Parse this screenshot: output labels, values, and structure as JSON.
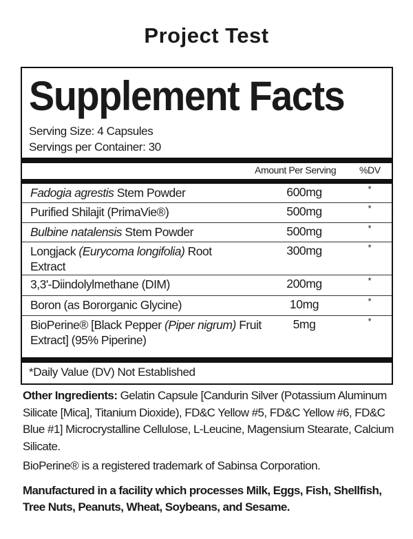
{
  "title": "Project Test",
  "panel": {
    "heading": "Supplement Facts",
    "serving_size": "Serving Size: 4 Capsules",
    "servings_per_container": "Servings per Container: 30",
    "col_amount": "Amount Per Serving",
    "col_dv": "%DV",
    "rows": [
      {
        "italic": "Fadogia agrestis",
        "rest": " Stem Powder",
        "amount": "600mg",
        "dv": "*"
      },
      {
        "pre": "Purified Shilajit (PrimaVie®)",
        "amount": "500mg",
        "dv": "*"
      },
      {
        "italic": "Bulbine natalensis",
        "rest": " Stem Powder",
        "amount": "500mg",
        "dv": "*"
      },
      {
        "pre": "Longjack ",
        "italic": "(Eurycoma longifolia)",
        "rest": " Root Extract",
        "amount": "300mg",
        "dv": "*"
      },
      {
        "pre": "3,3'-Diindolylmethane (DIM)",
        "amount": "200mg",
        "dv": "*"
      },
      {
        "pre": "Boron (as Bororganic Glycine)",
        "amount": "10mg",
        "dv": "*"
      },
      {
        "pre": "BioPerine® [Black Pepper ",
        "italic": "(Piper nigrum)",
        "rest": " Fruit Extract] (95% Piperine)",
        "amount": "5mg",
        "dv": "*"
      }
    ],
    "footnote": "*Daily Value (DV) Not Established"
  },
  "other_ingredients": {
    "label": "Other Ingredients:",
    "text": " Gelatin Capsule [Candurin Silver (Potassium Aluminum Silicate [Mica], Titanium Dioxide), FD&C Yellow #5, FD&C Yellow #6, FD&C Blue #1] Microcrystalline Cellulose, L-Leucine, Magensium Stearate, Calcium Silicate."
  },
  "trademark": "BioPerine® is a registered trademark of Sabinsa Corporation.",
  "allergen": "Manufactured in a facility which processes Milk, Eggs, Fish, Shellfish, Tree Nuts, Peanuts, Wheat, Soybeans, and Sesame."
}
